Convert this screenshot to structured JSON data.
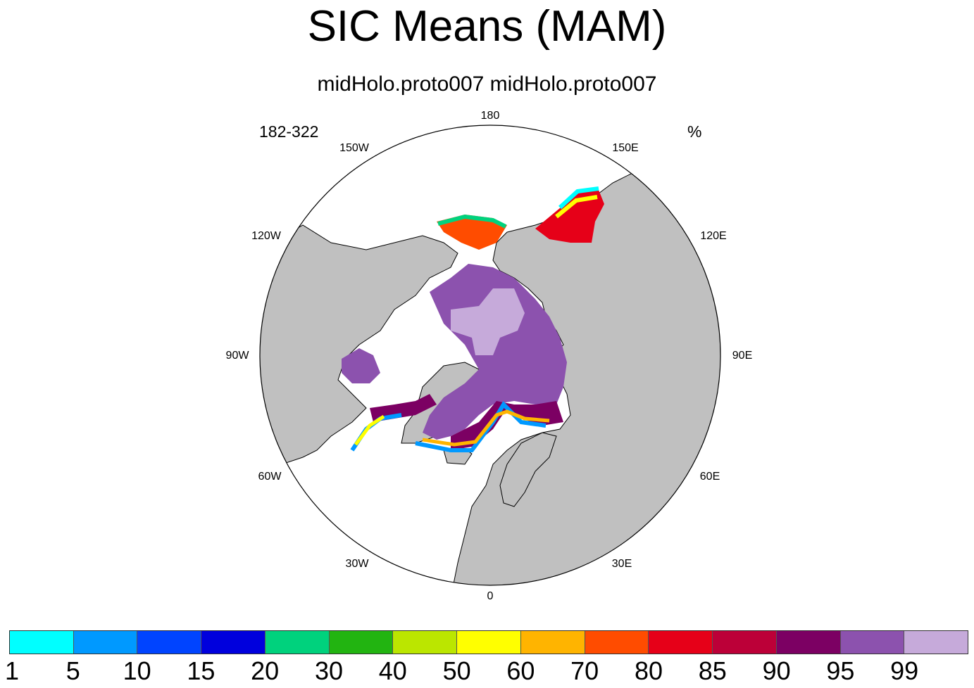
{
  "title": "SIC Means (MAM)",
  "subtitle": "midHolo.proto007  midHolo.proto007",
  "left_label": "182-322",
  "right_label": "%",
  "longitude_labels": {
    "lon_180": "180",
    "lon_150w": "150W",
    "lon_150e": "150E",
    "lon_120w": "120W",
    "lon_120e": "120E",
    "lon_90w": "90W",
    "lon_90e": "90E",
    "lon_60w": "60W",
    "lon_60e": "60E",
    "lon_30w": "30W",
    "lon_30e": "30E",
    "lon_0": "0"
  },
  "colorbar": {
    "levels": [
      "1",
      "5",
      "10",
      "15",
      "20",
      "30",
      "40",
      "50",
      "60",
      "70",
      "80",
      "85",
      "90",
      "95",
      "99"
    ],
    "colors": [
      "#00ffff",
      "#0099ff",
      "#0044ff",
      "#0000dd",
      "#00d27d",
      "#22b411",
      "#bbe600",
      "#ffff00",
      "#ffb400",
      "#ff4c00",
      "#e60018",
      "#bc0038",
      "#7c0063",
      "#8c52ae",
      "#c6aada"
    ]
  },
  "map_colors": {
    "land": "#c0c0c0",
    "ocean": "#ffffff"
  }
}
